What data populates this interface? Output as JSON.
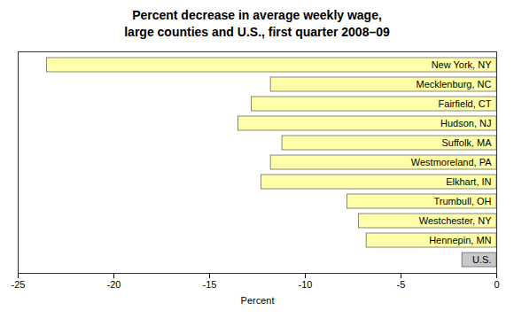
{
  "chart_data": {
    "type": "bar",
    "orientation": "horizontal",
    "title": "Percent decrease in average weekly wage,\nlarge counties and U.S., first quarter 2008–09",
    "categories": [
      "New York, NY",
      "Mecklenburg, NC",
      "Fairfield, CT",
      "Hudson, NJ",
      "Suffolk, MA",
      "Westmoreland, PA",
      "Elkhart, IN",
      "Trumbull, OH",
      "Westchester, NY",
      "Hennepin, MN",
      "U.S."
    ],
    "values": [
      -23.5,
      -11.8,
      -12.8,
      -13.5,
      -11.2,
      -11.8,
      -12.3,
      -7.8,
      -7.2,
      -6.8,
      -1.8
    ],
    "colors": [
      "#FFFFAA",
      "#FFFFAA",
      "#FFFFAA",
      "#FFFFAA",
      "#FFFFAA",
      "#FFFFAA",
      "#FFFFAA",
      "#FFFFAA",
      "#FFFFAA",
      "#FFFFAA",
      "#C8C8C8"
    ],
    "xlabel": "Percent",
    "xlim": [
      -25,
      0
    ],
    "xticks": [
      -25,
      -20,
      -15,
      -10,
      -5,
      0
    ],
    "grid": false,
    "tick_labels": "x"
  }
}
